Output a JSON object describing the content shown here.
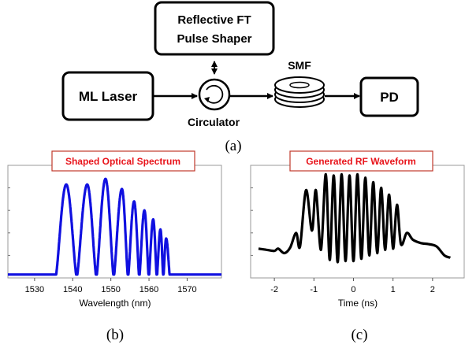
{
  "diagram": {
    "blocks": {
      "shaper_line1": "Reflective FT",
      "shaper_line2": "Pulse Shaper",
      "laser": "ML Laser",
      "pd": "PD"
    },
    "labels": {
      "smf": "SMF",
      "circulator": "Circulator"
    },
    "caption_a": "(a)"
  },
  "chart_data": [
    {
      "type": "line",
      "title": "Shaped Optical Spectrum",
      "xlabel": "Wavelength (nm)",
      "ylabel": "",
      "xlim": [
        1523,
        1579
      ],
      "ylim": [
        0,
        1
      ],
      "xticks": [
        "1530",
        "1540",
        "1550",
        "1560",
        "1570"
      ],
      "series": [
        {
          "color": "#1010e0",
          "peaks": [
            {
              "x": 1538.3,
              "y": 0.83
            },
            {
              "x": 1543.8,
              "y": 0.83
            },
            {
              "x": 1548.6,
              "y": 0.88
            },
            {
              "x": 1552.9,
              "y": 0.79
            },
            {
              "x": 1556.1,
              "y": 0.68
            },
            {
              "x": 1558.8,
              "y": 0.6
            },
            {
              "x": 1561.1,
              "y": 0.52
            },
            {
              "x": 1563.0,
              "y": 0.43
            },
            {
              "x": 1564.5,
              "y": 0.35
            }
          ],
          "baseline": 0.03,
          "start": 1535.5,
          "end": 1565.5
        }
      ],
      "caption": "(b)"
    },
    {
      "type": "line",
      "title": "Generated RF Waveform",
      "xlabel": "Time (ns)",
      "ylabel": "",
      "xlim": [
        -2.6,
        2.8
      ],
      "ylim": [
        0,
        1
      ],
      "xticks": [
        "-2",
        "-1",
        "0",
        "1",
        "2"
      ],
      "series": [
        {
          "color": "#000000",
          "x": [
            -2.4,
            -2.2,
            -2.0,
            -1.9,
            -1.75,
            -1.6,
            -1.45,
            -1.35,
            -1.2,
            -1.05,
            -0.95,
            -0.82,
            -0.7,
            -0.6,
            -0.5,
            -0.4,
            -0.3,
            -0.2,
            -0.1,
            0.0,
            0.1,
            0.2,
            0.3,
            0.4,
            0.5,
            0.6,
            0.7,
            0.8,
            0.9,
            1.0,
            1.1,
            1.2,
            1.35,
            1.5,
            1.7,
            1.9,
            2.1,
            2.3,
            2.45
          ],
          "y": [
            0.26,
            0.25,
            0.24,
            0.26,
            0.22,
            0.27,
            0.4,
            0.28,
            0.78,
            0.42,
            0.78,
            0.25,
            0.92,
            0.16,
            0.91,
            0.14,
            0.92,
            0.15,
            0.91,
            0.15,
            0.92,
            0.17,
            0.89,
            0.2,
            0.85,
            0.22,
            0.8,
            0.25,
            0.74,
            0.26,
            0.65,
            0.3,
            0.4,
            0.34,
            0.31,
            0.3,
            0.28,
            0.2,
            0.18
          ]
        }
      ],
      "caption": "(c)"
    }
  ]
}
